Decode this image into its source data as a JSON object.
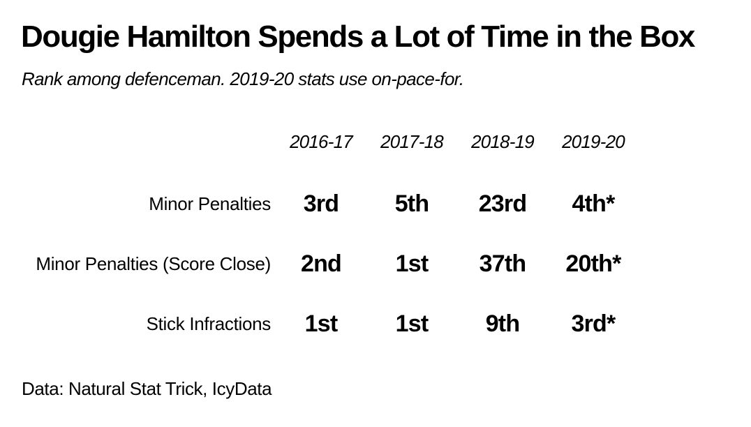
{
  "title": "Dougie Hamilton Spends a Lot of Time in the Box",
  "subtitle": "Rank among defenceman. 2019-20 stats use on-pace-for.",
  "caption": "Data: Natural Stat Trick, IcyData",
  "chart_data": {
    "type": "table",
    "columns": [
      "2016-17",
      "2017-18",
      "2018-19",
      "2019-20"
    ],
    "rows": [
      {
        "label": "Minor Penalties",
        "values": [
          "3rd",
          "5th",
          "23rd",
          "4th*"
        ]
      },
      {
        "label": "Minor Penalties (Score Close)",
        "values": [
          "2nd",
          "1st",
          "37th",
          "20th*"
        ]
      },
      {
        "label": "Stick Infractions",
        "values": [
          "1st",
          "1st",
          "9th",
          "3rd*"
        ]
      }
    ]
  }
}
